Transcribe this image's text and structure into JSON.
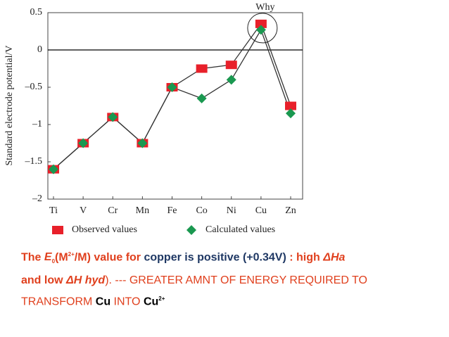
{
  "chart_data": {
    "type": "line",
    "y_label": "Standard electrode potential/V",
    "categories": [
      "Ti",
      "V",
      "Cr",
      "Mn",
      "Fe",
      "Co",
      "Ni",
      "Cu",
      "Zn"
    ],
    "series": [
      {
        "name": "Observed values",
        "color": "#e8202a",
        "marker": "square",
        "values": [
          -1.6,
          -1.25,
          -0.9,
          -1.25,
          -0.5,
          -0.25,
          -0.2,
          0.35,
          -0.75
        ]
      },
      {
        "name": "Calculated values",
        "color": "#1a9850",
        "marker": "diamond",
        "values": [
          -1.6,
          -1.25,
          -0.9,
          -1.25,
          -0.5,
          -0.65,
          -0.4,
          0.27,
          -0.85
        ]
      }
    ],
    "ylim": [
      -2,
      0.5
    ],
    "yticks": [
      {
        "value": 0.5,
        "label": "0.5"
      },
      0,
      {
        "value": -0.5,
        "label": "–0.5"
      },
      {
        "value": -1,
        "label": "–1"
      },
      {
        "value": -1.5,
        "label": "–1.5"
      },
      {
        "value": -2,
        "label": "–2"
      }
    ],
    "annotation": "Why"
  },
  "caption": [
    "The ",
    "E",
    "0",
    "(M",
    "2+",
    "/M) value for ",
    "copper is positive (+0.34V)",
    "  : high ",
    "ΔHa",
    "and low ",
    "ΔH hyd",
    "). --- GREATER AMNT OF ENERGY REQUIRED TO",
    "TRANSFORM ",
    "Cu",
    " INTO ",
    "Cu",
    "2+"
  ]
}
